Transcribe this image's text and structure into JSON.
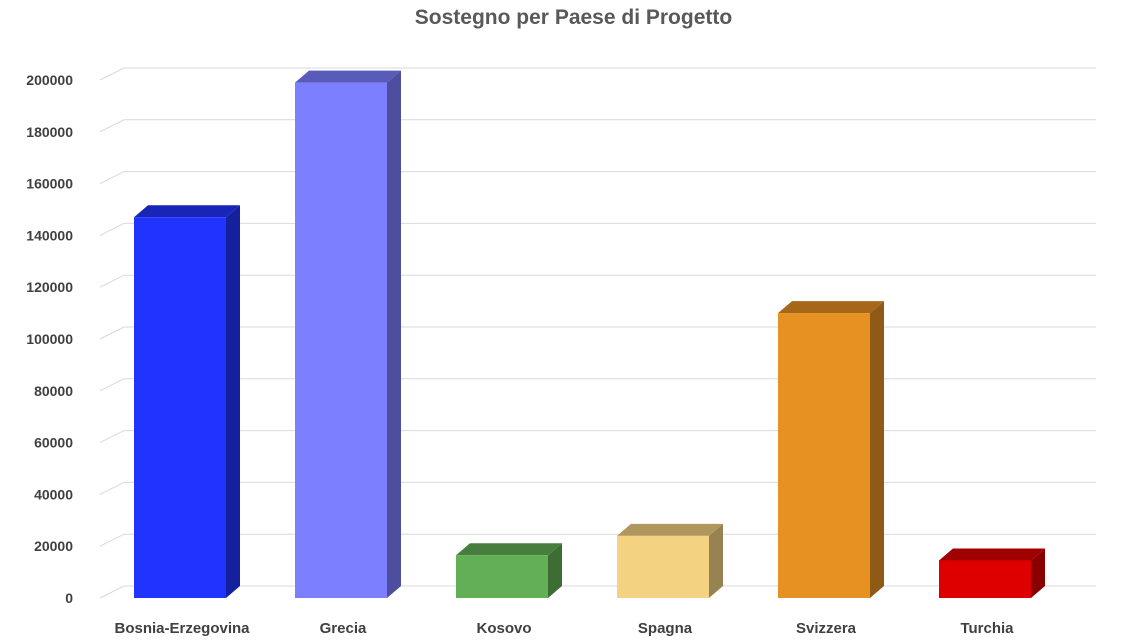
{
  "chart_data": {
    "type": "bar",
    "title": "Sostegno per Paese di Progetto",
    "categories": [
      "Bosnia-Erzegovina",
      "Grecia",
      "Kosovo",
      "Spagna",
      "Svizzera",
      "Turchia"
    ],
    "values": [
      147000,
      199000,
      16500,
      24000,
      110000,
      14500
    ],
    "colors": [
      "#2033FF",
      "#7C7FFF",
      "#62AF55",
      "#F3D282",
      "#E69122",
      "#DE0000"
    ],
    "ylim": [
      0,
      200000
    ],
    "yticks": [
      0,
      20000,
      40000,
      60000,
      80000,
      100000,
      120000,
      140000,
      160000,
      180000,
      200000
    ],
    "grid": true,
    "style": "3d"
  }
}
